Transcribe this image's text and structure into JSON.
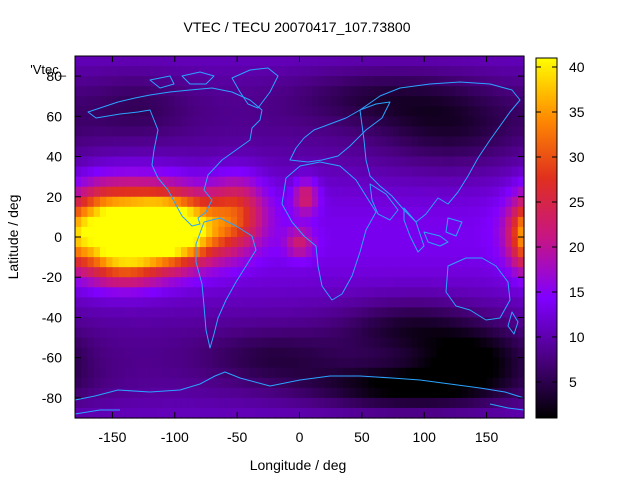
{
  "chart_data": {
    "type": "heatmap",
    "title": "VTEC / TECU 20070417_107.73800",
    "xlabel": "Longitude / deg",
    "ylabel": "Latitude / deg",
    "series_label": "'Vtec_",
    "xlim": [
      -180,
      180
    ],
    "ylim": [
      -90,
      90
    ],
    "x_ticks": [
      -150,
      -100,
      -50,
      0,
      50,
      100,
      150
    ],
    "y_ticks": [
      -80,
      -60,
      -40,
      -20,
      0,
      20,
      40,
      60,
      80
    ],
    "colorbar": {
      "range": [
        1,
        41
      ],
      "ticks": [
        5,
        10,
        15,
        20,
        25,
        30,
        35,
        40
      ],
      "colors": [
        "#000000",
        "#4b0082",
        "#8000ff",
        "#c71585",
        "#e0301e",
        "#ff8c00",
        "#ffff00"
      ]
    },
    "grid": false,
    "features": [
      {
        "lon": -100,
        "lat": 3,
        "vtec": 40,
        "sx": 28,
        "sy": 11
      },
      {
        "lon": -128,
        "lat": 8,
        "vtec": 30,
        "sx": 30,
        "sy": 14
      },
      {
        "lon": -160,
        "lat": 5,
        "vtec": 27,
        "sx": 17,
        "sy": 13
      },
      {
        "lon": -50,
        "lat": 13,
        "vtec": 24,
        "sx": 16,
        "sy": 12
      },
      {
        "lon": -140,
        "lat": -12,
        "vtec": 24,
        "sx": 22,
        "sy": 9
      },
      {
        "lon": 5,
        "lat": 20,
        "vtec": 22,
        "sx": 7,
        "sy": 6
      },
      {
        "lon": 0,
        "lat": -3,
        "vtec": 20,
        "sx": 8,
        "sy": 5
      },
      {
        "lon": 180,
        "lat": 0,
        "vtec": 22,
        "sx": 9,
        "sy": 10
      },
      {
        "lon": 90,
        "lat": -75,
        "vtec": 2,
        "sx": 55,
        "sy": 8
      },
      {
        "lon": 90,
        "lat": -45,
        "vtec": 5,
        "sx": 40,
        "sy": 10
      },
      {
        "lon": 140,
        "lat": -60,
        "vtec": 4,
        "sx": 30,
        "sy": 10
      },
      {
        "lon": 120,
        "lat": 55,
        "vtec": 6,
        "sx": 40,
        "sy": 15
      },
      {
        "lon": 60,
        "lat": 70,
        "vtec": 7,
        "sx": 45,
        "sy": 10
      },
      {
        "lon": -130,
        "lat": 65,
        "vtec": 8,
        "sx": 30,
        "sy": 12
      },
      {
        "lon": -20,
        "lat": -60,
        "vtec": 7,
        "sx": 40,
        "sy": 10
      }
    ]
  }
}
